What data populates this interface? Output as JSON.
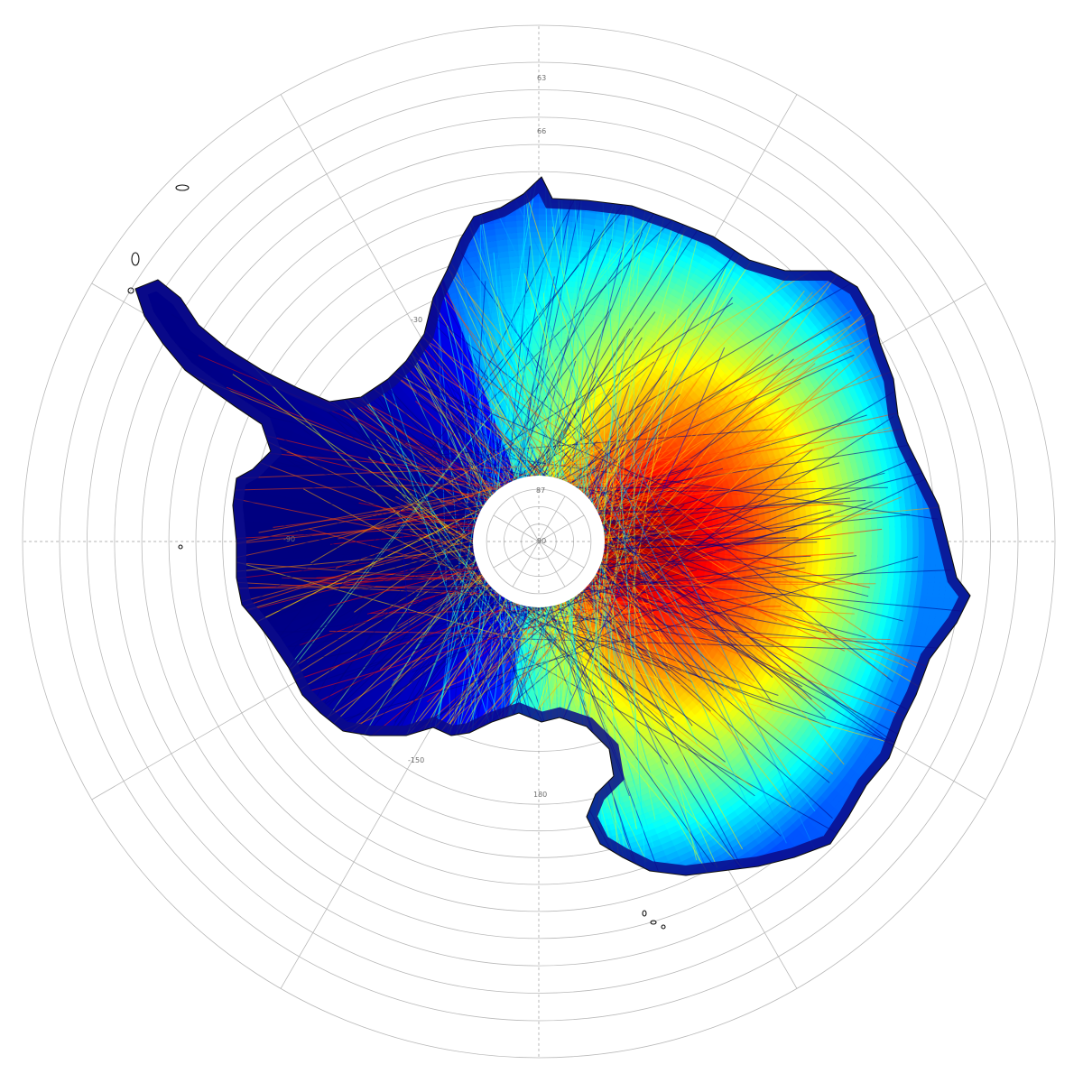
{
  "map": {
    "projection": "south-polar-stereographic",
    "region": "Antarctica",
    "colormap": [
      "#00007f",
      "#0000ff",
      "#0080ff",
      "#00ffff",
      "#80ff80",
      "#ffff00",
      "#ff8000",
      "#ff0000",
      "#7f0000"
    ],
    "coast_color": "#111111",
    "grid_color": "#b9b9b9",
    "latitude_labels": [
      "63",
      "66",
      "87",
      "90"
    ],
    "longitude_labels": [
      "-30",
      "-90",
      "-150",
      "180"
    ],
    "latitude_circles": [
      61,
      63,
      64.5,
      66,
      67.5,
      69,
      70.5,
      72,
      73.5,
      75,
      78,
      81,
      84,
      87
    ],
    "longitude_spokes": [
      0,
      30,
      60,
      90,
      120,
      150,
      180,
      -150,
      -120,
      -90,
      -60,
      -30
    ]
  }
}
